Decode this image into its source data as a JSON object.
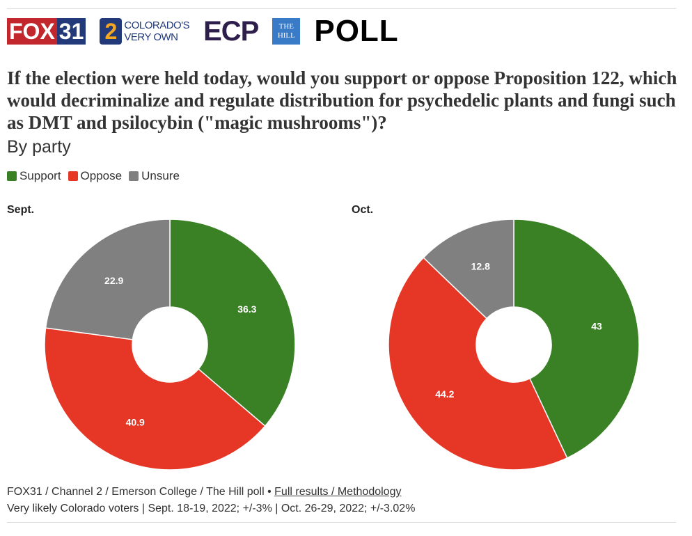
{
  "header": {
    "logos": [
      "FOX31",
      "COLORADO'S VERY OWN 2",
      "ECP",
      "THE HILL"
    ],
    "fox_a": "FOX",
    "fox_b": "31",
    "ch2_num": "2",
    "ch2_l1": "COLORADO'S",
    "ch2_l2": "VERY OWN",
    "ecp": "ECP",
    "hill_l1": "THE",
    "hill_l2": "HILL",
    "poll": "POLL"
  },
  "chart_data": {
    "type": "pie",
    "title": "If the election were held today, would you support or oppose Proposition 122, which would decriminalize and regulate distribution for psychedelic plants and fungi such as DMT and psilocybin (\"magic mushrooms\")?",
    "subtitle": "By party",
    "legend": [
      {
        "label": "Support",
        "color": "#3a8024"
      },
      {
        "label": "Oppose",
        "color": "#e63726"
      },
      {
        "label": "Unsure",
        "color": "#808080"
      }
    ],
    "legend_placement": "top-left",
    "charts": [
      {
        "title": "Sept.",
        "values": [
          36.3,
          40.9,
          22.9
        ],
        "labels": [
          "36.3",
          "40.9",
          "22.9"
        ]
      },
      {
        "title": "Oct.",
        "values": [
          43,
          44.2,
          12.8
        ],
        "labels": [
          "43",
          "44.2",
          "12.8"
        ]
      }
    ]
  },
  "footer": {
    "source": "FOX31 / Channel 2 / Emerson College / The Hill poll • ",
    "link": "Full results / Methodology",
    "note": "Very likely Colorado voters | Sept. 18-19, 2022; +/-3% | Oct. 26-29, 2022; +/-3.02%"
  }
}
